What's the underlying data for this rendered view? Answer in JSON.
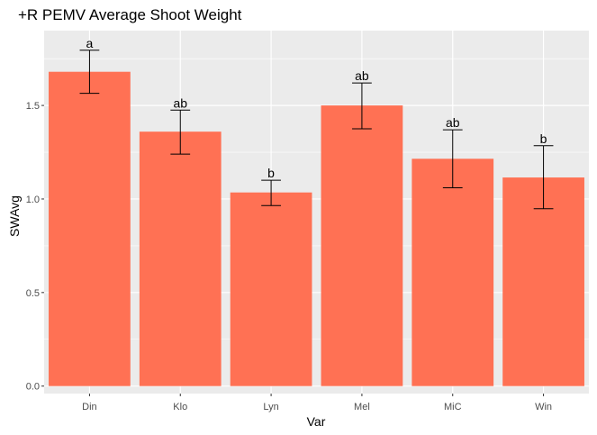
{
  "chart_data": {
    "type": "bar",
    "title": "+R PEMV Average Shoot Weight",
    "xlabel": "Var",
    "ylabel": "SWAvg",
    "categories": [
      "Din",
      "Klo",
      "Lyn",
      "Mel",
      "MiC",
      "Win"
    ],
    "values": [
      1.68,
      1.36,
      1.035,
      1.5,
      1.215,
      1.115
    ],
    "error_low": [
      1.565,
      1.24,
      0.965,
      1.375,
      1.06,
      0.948
    ],
    "error_high": [
      1.795,
      1.475,
      1.1,
      1.62,
      1.37,
      1.285
    ],
    "labels": [
      "a",
      "ab",
      "b",
      "ab",
      "ab",
      "b"
    ],
    "ylim": [
      -0.04,
      1.9
    ],
    "yticks": [
      0.0,
      0.5,
      1.0,
      1.5
    ],
    "ytick_labels": [
      "0.0",
      "0.5",
      "1.0",
      "1.5"
    ],
    "grid": true,
    "bar_color": "#FF7154",
    "panel_color": "#EBEBEB",
    "grid_color": "#FFFFFF"
  }
}
